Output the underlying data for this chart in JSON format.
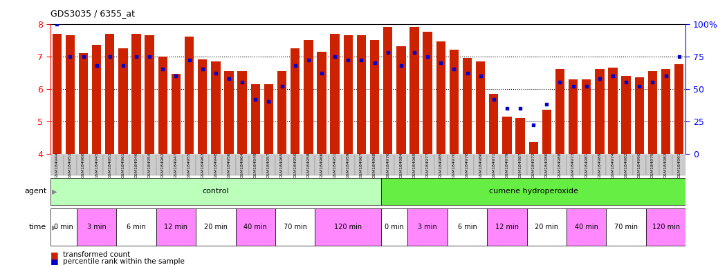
{
  "title": "GDS3035 / 6355_at",
  "samples": [
    "GSM184944",
    "GSM184952",
    "GSM184960",
    "GSM184945",
    "GSM184953",
    "GSM184961",
    "GSM184946",
    "GSM184954",
    "GSM184962",
    "GSM184947",
    "GSM184955",
    "GSM184963",
    "GSM184948",
    "GSM184956",
    "GSM184964",
    "GSM184949",
    "GSM184957",
    "GSM184965",
    "GSM184950",
    "GSM184958",
    "GSM184966",
    "GSM184951",
    "GSM184959",
    "GSM184967",
    "GSM184968",
    "GSM184976",
    "GSM184984",
    "GSM184969",
    "GSM184977",
    "GSM184985",
    "GSM184970",
    "GSM184978",
    "GSM184986",
    "GSM184971",
    "GSM184979",
    "GSM184987",
    "GSM184972",
    "GSM184980",
    "GSM184988",
    "GSM184973",
    "GSM184981",
    "GSM184989",
    "GSM184974",
    "GSM184982",
    "GSM184990",
    "GSM184975",
    "GSM184983",
    "GSM184991"
  ],
  "red_values": [
    7.7,
    7.65,
    7.1,
    7.35,
    7.7,
    7.25,
    7.7,
    7.65,
    7.0,
    6.45,
    7.6,
    6.9,
    6.85,
    6.55,
    6.55,
    6.15,
    6.15,
    6.55,
    7.25,
    7.5,
    7.15,
    7.7,
    7.65,
    7.65,
    7.5,
    7.9,
    7.3,
    7.9,
    7.75,
    7.45,
    7.2,
    6.95,
    6.85,
    5.85,
    5.15,
    5.1,
    4.35,
    5.35,
    6.6,
    6.3,
    6.3,
    6.6,
    6.65,
    6.4,
    6.35,
    6.55,
    6.6,
    6.75
  ],
  "blue_values": [
    100,
    75,
    75,
    68,
    75,
    68,
    75,
    75,
    65,
    60,
    72,
    65,
    62,
    58,
    55,
    42,
    40,
    52,
    68,
    72,
    62,
    75,
    72,
    72,
    70,
    78,
    68,
    78,
    75,
    70,
    65,
    62,
    60,
    42,
    35,
    35,
    22,
    38,
    55,
    52,
    52,
    58,
    60,
    55,
    52,
    55,
    60,
    75
  ],
  "ylim": [
    4,
    8
  ],
  "blue_ylim": [
    0,
    100
  ],
  "yticks": [
    4,
    5,
    6,
    7,
    8
  ],
  "blue_yticks": [
    0,
    25,
    50,
    75,
    100
  ],
  "bar_color": "#cc2200",
  "blue_color": "#0000cc",
  "background_color": "#ffffff",
  "tick_label_bg": "#cccccc",
  "agent_groups": [
    {
      "label": "control",
      "start": 0,
      "end": 25,
      "color": "#bbffbb"
    },
    {
      "label": "cumene hydroperoxide",
      "start": 25,
      "end": 48,
      "color": "#66ee44"
    }
  ],
  "time_groups": [
    {
      "label": "0 min",
      "start": 0,
      "end": 2,
      "color": "#ffffff"
    },
    {
      "label": "3 min",
      "start": 2,
      "end": 5,
      "color": "#ff88ff"
    },
    {
      "label": "6 min",
      "start": 5,
      "end": 8,
      "color": "#ffffff"
    },
    {
      "label": "12 min",
      "start": 8,
      "end": 11,
      "color": "#ff88ff"
    },
    {
      "label": "20 min",
      "start": 11,
      "end": 14,
      "color": "#ffffff"
    },
    {
      "label": "40 min",
      "start": 14,
      "end": 17,
      "color": "#ff88ff"
    },
    {
      "label": "70 min",
      "start": 17,
      "end": 20,
      "color": "#ffffff"
    },
    {
      "label": "120 min",
      "start": 20,
      "end": 25,
      "color": "#ff88ff"
    },
    {
      "label": "0 min",
      "start": 25,
      "end": 27,
      "color": "#ffffff"
    },
    {
      "label": "3 min",
      "start": 27,
      "end": 30,
      "color": "#ff88ff"
    },
    {
      "label": "6 min",
      "start": 30,
      "end": 33,
      "color": "#ffffff"
    },
    {
      "label": "12 min",
      "start": 33,
      "end": 36,
      "color": "#ff88ff"
    },
    {
      "label": "20 min",
      "start": 36,
      "end": 39,
      "color": "#ffffff"
    },
    {
      "label": "40 min",
      "start": 39,
      "end": 42,
      "color": "#ff88ff"
    },
    {
      "label": "70 min",
      "start": 42,
      "end": 45,
      "color": "#ffffff"
    },
    {
      "label": "120 min",
      "start": 45,
      "end": 48,
      "color": "#ff88ff"
    }
  ]
}
